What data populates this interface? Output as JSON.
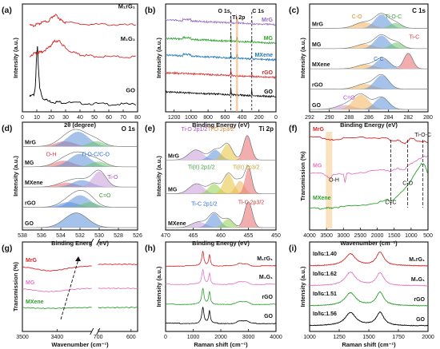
{
  "chart_data": [
    {
      "id": "a",
      "type": "line",
      "panel_label": "(a)",
      "xlabel": "2θ (degree)",
      "ylabel": "Intensity (a.u.)",
      "xlim": [
        0,
        80
      ],
      "ylim": [
        0,
        10
      ],
      "xticks": [
        0,
        10,
        20,
        30,
        40,
        50,
        60,
        70,
        80
      ],
      "series": [
        {
          "name": "GO",
          "color": "#000000",
          "x": [
            5,
            8,
            9,
            10,
            10.5,
            11,
            12,
            14,
            18,
            22,
            26,
            30,
            40,
            50,
            60,
            70,
            80
          ],
          "y": [
            1.4,
            1.6,
            2.3,
            5.6,
            6.0,
            4.4,
            2.2,
            1.3,
            1.0,
            0.9,
            0.9,
            0.85,
            0.8,
            0.75,
            0.7,
            0.7,
            0.7
          ]
        },
        {
          "name": "M1G1",
          "color": "#d62728",
          "x": [
            5,
            8,
            10,
            12,
            14,
            18,
            20,
            22,
            24,
            26,
            28,
            30,
            35,
            40,
            45,
            50,
            60,
            70,
            80
          ],
          "y": [
            5.2,
            5.4,
            5.4,
            5.5,
            5.6,
            5.9,
            6.2,
            6.5,
            6.6,
            6.5,
            6.2,
            5.9,
            5.5,
            5.3,
            5.2,
            5.15,
            5.1,
            5.1,
            5.1
          ]
        },
        {
          "name": "M1rG1",
          "color": "#d62728",
          "x": [
            5,
            8,
            10,
            12,
            14,
            18,
            20,
            22,
            24,
            26,
            28,
            30,
            40,
            50,
            60,
            70,
            80
          ],
          "y": [
            8.0,
            8.0,
            8.1,
            8.2,
            8.3,
            8.4,
            8.7,
            8.95,
            8.9,
            8.6,
            8.4,
            8.3,
            8.15,
            8.1,
            8.1,
            8.05,
            8.05
          ]
        }
      ],
      "labels": [
        "M₁rG₁",
        "M₁G₁",
        "GO"
      ]
    },
    {
      "id": "b",
      "type": "line",
      "panel_label": "(b)",
      "xlabel": "Binding Energy (eV)",
      "ylabel": "Intensity (a.u.)",
      "xlim": [
        1300,
        0
      ],
      "ylim": [
        0,
        10
      ],
      "xticks": [
        1200,
        1000,
        800,
        600,
        400,
        200,
        0
      ],
      "annotations": [
        "O 1s",
        "Ti 2p",
        "C 1s"
      ],
      "series": [
        {
          "name": "MrG",
          "color": "#9467bd"
        },
        {
          "name": "MG",
          "color": "#2ca02c"
        },
        {
          "name": "MXene",
          "color": "#1f77b4"
        },
        {
          "name": "rGO",
          "color": "#d62728"
        },
        {
          "name": "GO",
          "color": "#000000"
        }
      ]
    },
    {
      "id": "c",
      "type": "area",
      "panel_label": "(c)",
      "xlabel": "Binding Energy (eV)",
      "ylabel": "Intensity (a.u.)",
      "xlim": [
        292,
        280
      ],
      "xticks": [
        292,
        290,
        288,
        286,
        284,
        282,
        280
      ],
      "title": "C 1s",
      "rows": [
        "MrG",
        "MG",
        "MXene",
        "rGO",
        "GO"
      ],
      "annotations": [
        "C-O",
        "Ti-O-C",
        "Ti-C",
        "C-C",
        "C=O"
      ]
    },
    {
      "id": "d",
      "type": "area",
      "panel_label": "(d)",
      "xlabel": "Binding Energy (eV)",
      "ylabel": "Intensity (a.u.)",
      "xlim": [
        538,
        526
      ],
      "xticks": [
        538,
        536,
        534,
        532,
        530,
        528,
        526
      ],
      "title": "O 1s",
      "rows": [
        "MrG",
        "MG",
        "MXene",
        "rGO",
        "GO"
      ],
      "annotations": [
        "O-H",
        "Ti-O-C/C-O",
        "Ti-O",
        "C=O"
      ]
    },
    {
      "id": "e",
      "type": "area",
      "panel_label": "(e)",
      "xlabel": "Binding Energy (eV)",
      "ylabel": "Intensity (a.u.)",
      "xlim": [
        470,
        450
      ],
      "xticks": [
        470,
        465,
        460,
        455,
        450
      ],
      "title": "Ti 2p",
      "rows": [
        "MrG",
        "MG",
        "MXene"
      ],
      "annotations": [
        "Ti-O 2p1/2",
        "Ti-O 2p3/2",
        "Ti(II) 2p1/2",
        "Ti(II) 2p3/2",
        "Ti-C 2p1/2",
        "Ti-C 2p3/2"
      ]
    },
    {
      "id": "f",
      "type": "line",
      "panel_label": "(f)",
      "xlabel": "Wavenumber (cm⁻¹)",
      "ylabel": "Transmission (%)",
      "xlim": [
        4000,
        500
      ],
      "xticks": [
        4000,
        3500,
        3000,
        2500,
        2000,
        1500,
        1000,
        500
      ],
      "series": [
        {
          "name": "MrG",
          "color": "#d62728",
          "x": [
            4000,
            3700,
            3500,
            3400,
            3300,
            3000,
            2500,
            2000,
            1700,
            1600,
            1400,
            1200,
            1100,
            1000,
            800,
            600,
            500
          ],
          "y": [
            8.6,
            8.6,
            8.45,
            8.3,
            8.4,
            8.5,
            8.55,
            8.55,
            8.5,
            8.3,
            8.35,
            8.0,
            8.3,
            8.5,
            8.3,
            8.2,
            8.0
          ]
        },
        {
          "name": "MG",
          "color": "#e377c2",
          "x": [
            4000,
            3700,
            3500,
            3400,
            3300,
            3000,
            2950,
            2900,
            2500,
            2000,
            1700,
            1600,
            1400,
            1200,
            1100,
            1000,
            800,
            600,
            500
          ],
          "y": [
            5.3,
            5.35,
            5.0,
            4.85,
            5.1,
            5.25,
            4.4,
            5.2,
            5.35,
            5.5,
            5.6,
            5.4,
            5.7,
            5.6,
            5.9,
            6.2,
            6.5,
            6.8,
            6.9
          ]
        },
        {
          "name": "MXene",
          "color": "#2ca02c",
          "x": [
            4000,
            3700,
            3500,
            3400,
            3300,
            3000,
            2500,
            2000,
            1700,
            1600,
            1400,
            1200,
            1000,
            800,
            700,
            600,
            500
          ],
          "y": [
            2.0,
            2.0,
            2.05,
            2.0,
            2.1,
            2.15,
            2.3,
            2.5,
            2.8,
            2.7,
            3.1,
            3.8,
            4.6,
            5.6,
            6.2,
            6.0,
            5.2
          ]
        }
      ],
      "annotations": [
        "O-H",
        "C=C",
        "C-O",
        "Ti-O-C"
      ]
    },
    {
      "id": "g",
      "type": "line",
      "panel_label": "(g)",
      "xlabel": "Wavenumber (cm⁻¹)",
      "ylabel": "Transmission (%)",
      "xticks": [
        3500,
        3400,
        700,
        600
      ],
      "series": [
        {
          "name": "MrG",
          "color": "#d62728"
        },
        {
          "name": "MG",
          "color": "#e377c2"
        },
        {
          "name": "MXene",
          "color": "#2ca02c"
        }
      ]
    },
    {
      "id": "h",
      "type": "line",
      "panel_label": "(h)",
      "xlabel": "Raman shift (cm⁻¹)",
      "ylabel": "Intensity (a.u.)",
      "xlim": [
        0,
        4000
      ],
      "xticks": [
        0,
        1000,
        2000,
        3000,
        4000
      ],
      "series": [
        {
          "name": "M1rG1",
          "color": "#d62728"
        },
        {
          "name": "M1G1",
          "color": "#e377c2"
        },
        {
          "name": "rGO",
          "color": "#2ca02c"
        },
        {
          "name": "GO",
          "color": "#000000"
        }
      ],
      "labels": [
        "M₁rG₁",
        "M₁G₁",
        "rGO",
        "GO"
      ]
    },
    {
      "id": "i",
      "type": "line",
      "panel_label": "(i)",
      "xlabel": "Raman shift (cm⁻¹)",
      "ylabel": "Intensity (a.u.)",
      "xlim": [
        1000,
        2000
      ],
      "xticks": [
        1000,
        1250,
        1500,
        1750,
        2000
      ],
      "series": [
        {
          "name": "M1rG1",
          "color": "#d62728",
          "ID_IG": 1.4
        },
        {
          "name": "M1G1",
          "color": "#e377c2",
          "ID_IG": 1.62
        },
        {
          "name": "rGO",
          "color": "#2ca02c",
          "ID_IG": 1.51
        },
        {
          "name": "GO",
          "color": "#000000",
          "ID_IG": 1.56
        }
      ],
      "labels": [
        "M₁rG₁",
        "M₁G₁",
        "rGO",
        "GO"
      ],
      "ratio_labels": [
        "Iᴅ/Iɢ:1.40",
        "Iᴅ/Iɢ:1.62",
        "Iᴅ/Iɢ:1.51",
        "Iᴅ/Iɢ:1.56"
      ]
    }
  ]
}
